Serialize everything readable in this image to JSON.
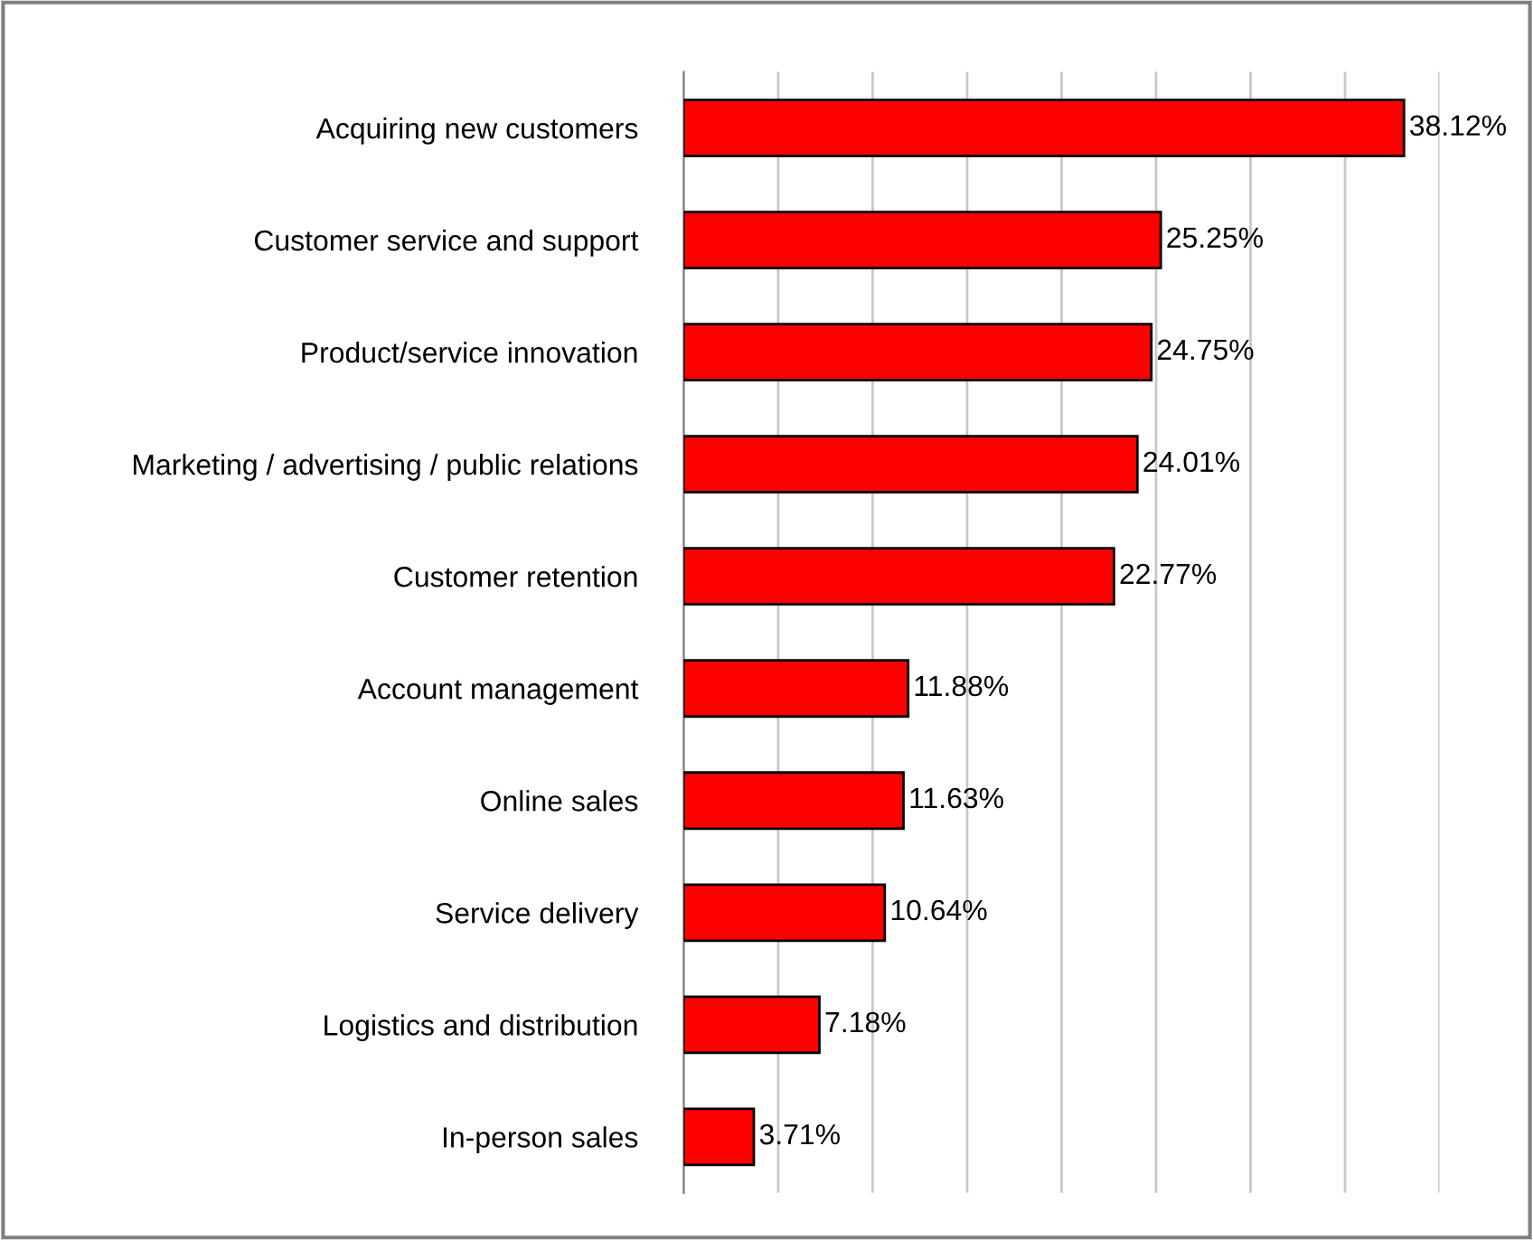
{
  "chart_data": {
    "type": "bar",
    "orientation": "horizontal",
    "categories": [
      "Acquiring new customers",
      "Customer service and support",
      "Product/service innovation",
      "Marketing / advertising / public relations",
      "Customer retention",
      "Account management",
      "Online sales",
      "Service delivery",
      "Logistics and distribution",
      "In-person sales"
    ],
    "values": [
      38.12,
      25.25,
      24.75,
      24.01,
      22.77,
      11.88,
      11.63,
      10.64,
      7.18,
      3.71
    ],
    "value_labels": [
      "38.12%",
      "25.25%",
      "24.75%",
      "24.01%",
      "22.77%",
      "11.88%",
      "11.63%",
      "10.64%",
      "7.18%",
      "3.71%"
    ],
    "color": "#ff0000",
    "xlim": [
      0,
      40
    ],
    "xticks": [
      {
        "value": 0,
        "label": null
      },
      {
        "value": 5,
        "label": null
      },
      {
        "value": 10,
        "label": null
      },
      {
        "value": 15,
        "label": null
      },
      {
        "value": 20,
        "label": null
      },
      {
        "value": 25,
        "label": null
      },
      {
        "value": 30,
        "label": null
      },
      {
        "value": 35,
        "label": null
      },
      {
        "value": 40,
        "label": null
      }
    ],
    "grid": "x",
    "tick_labels": "y"
  }
}
